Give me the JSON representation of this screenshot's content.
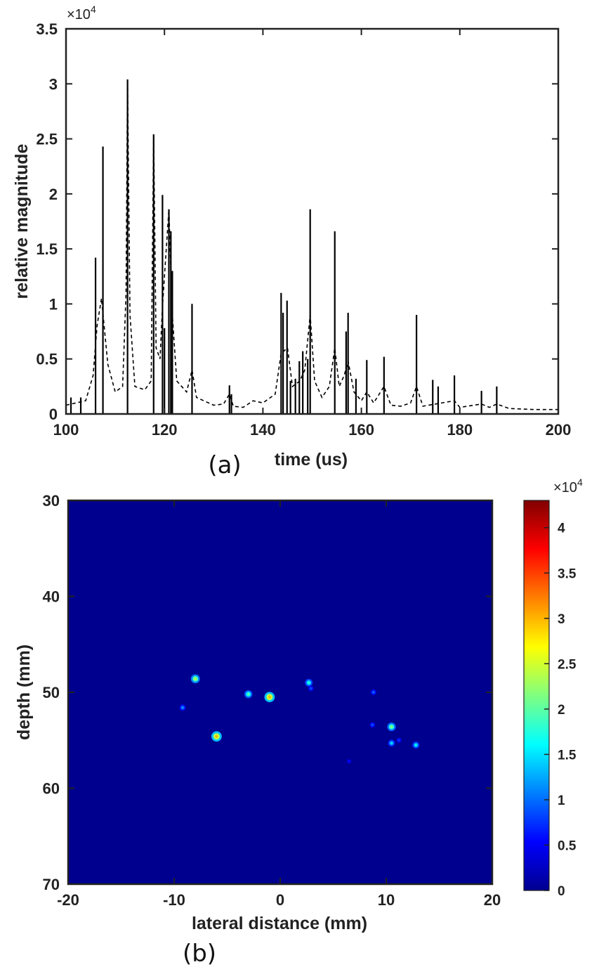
{
  "chart_data": [
    {
      "panel": "(a)",
      "type": "line",
      "xlabel": "time (us)",
      "ylabel": "relative magnitude",
      "y_exponent": "×10",
      "y_exponent_power": "4",
      "xlim": [
        100,
        200
      ],
      "ylim": [
        0,
        35000
      ],
      "x_ticks": [
        100,
        120,
        140,
        160,
        180,
        200
      ],
      "x_tick_labels": [
        "100",
        "120",
        "140",
        "160",
        "180",
        "200"
      ],
      "y_ticks": [
        0,
        5000,
        10000,
        15000,
        20000,
        25000,
        30000,
        35000
      ],
      "y_tick_labels": [
        "0",
        "0.5",
        "1",
        "1.5",
        "2",
        "2.5",
        "3",
        "3.5"
      ],
      "grid": false,
      "series": [
        {
          "style": "solid",
          "color": "#000000",
          "points": [
            [
              101.0,
              1500
            ],
            [
              103.0,
              1500
            ],
            [
              106.0,
              14200
            ],
            [
              107.5,
              24300
            ],
            [
              112.5,
              30400
            ],
            [
              117.8,
              25400
            ],
            [
              119.6,
              19900
            ],
            [
              120.0,
              7800
            ],
            [
              120.9,
              18600
            ],
            [
              121.3,
              16600
            ],
            [
              121.6,
              13000
            ],
            [
              125.6,
              10000
            ],
            [
              133.2,
              2600
            ],
            [
              133.6,
              1800
            ],
            [
              143.7,
              11000
            ],
            [
              144.1,
              9200
            ],
            [
              144.9,
              10300
            ],
            [
              145.6,
              3000
            ],
            [
              146.6,
              3200
            ],
            [
              147.4,
              4800
            ],
            [
              148.1,
              5700
            ],
            [
              149.1,
              5000
            ],
            [
              149.6,
              18600
            ],
            [
              154.6,
              16600
            ],
            [
              156.9,
              7500
            ],
            [
              157.3,
              9200
            ],
            [
              158.9,
              3200
            ],
            [
              161.1,
              4900
            ],
            [
              164.6,
              5200
            ],
            [
              171.2,
              9000
            ],
            [
              174.5,
              3100
            ],
            [
              175.6,
              2500
            ],
            [
              178.9,
              3500
            ],
            [
              184.4,
              2100
            ],
            [
              187.5,
              2500
            ]
          ]
        },
        {
          "style": "dashed",
          "color": "#000000",
          "points": [
            [
              100,
              800
            ],
            [
              104,
              1200
            ],
            [
              105.5,
              3500
            ],
            [
              106.3,
              8000
            ],
            [
              107.2,
              10500
            ],
            [
              108.5,
              4500
            ],
            [
              110,
              2000
            ],
            [
              111.5,
              2500
            ],
            [
              112.2,
              11000
            ],
            [
              112.5,
              30400
            ],
            [
              113,
              9000
            ],
            [
              114,
              2500
            ],
            [
              116,
              2200
            ],
            [
              117.3,
              3000
            ],
            [
              117.8,
              25400
            ],
            [
              118.3,
              6000
            ],
            [
              119.1,
              5000
            ],
            [
              119.6,
              9800
            ],
            [
              120.9,
              18600
            ],
            [
              121.6,
              9000
            ],
            [
              122.5,
              3000
            ],
            [
              124.5,
              2000
            ],
            [
              125.6,
              4000
            ],
            [
              126.5,
              1500
            ],
            [
              130,
              800
            ],
            [
              132,
              900
            ],
            [
              133.2,
              1800
            ],
            [
              134,
              700
            ],
            [
              136,
              600
            ],
            [
              138,
              1200
            ],
            [
              140,
              1000
            ],
            [
              142.5,
              1800
            ],
            [
              143.7,
              5500
            ],
            [
              145,
              6000
            ],
            [
              146,
              2500
            ],
            [
              147.5,
              3000
            ],
            [
              148.5,
              4000
            ],
            [
              149.6,
              9000
            ],
            [
              150.5,
              3000
            ],
            [
              152,
              1500
            ],
            [
              153.5,
              2500
            ],
            [
              154.6,
              6000
            ],
            [
              155.5,
              2500
            ],
            [
              156.5,
              3500
            ],
            [
              157.3,
              4800
            ],
            [
              158.5,
              2000
            ],
            [
              160,
              1200
            ],
            [
              161.1,
              2000
            ],
            [
              162.5,
              1000
            ],
            [
              164.6,
              2500
            ],
            [
              166,
              800
            ],
            [
              168,
              700
            ],
            [
              170,
              1000
            ],
            [
              171.2,
              2500
            ],
            [
              172.5,
              700
            ],
            [
              175,
              900
            ],
            [
              178.9,
              1200
            ],
            [
              180,
              600
            ],
            [
              184.4,
              900
            ],
            [
              186,
              600
            ],
            [
              187.5,
              900
            ],
            [
              190,
              500
            ],
            [
              195,
              400
            ],
            [
              200,
              400
            ]
          ]
        }
      ]
    },
    {
      "panel": "(b)",
      "type": "heatmap",
      "xlabel": "lateral distance (mm)",
      "ylabel": "depth (mm)",
      "xlim": [
        -20,
        20
      ],
      "ylim": [
        30,
        70
      ],
      "y_reversed": true,
      "x_ticks": [
        -20,
        -10,
        0,
        10,
        20
      ],
      "x_tick_labels": [
        "-20",
        "-10",
        "0",
        "10",
        "20"
      ],
      "y_ticks": [
        30,
        40,
        50,
        60,
        70
      ],
      "y_tick_labels": [
        "30",
        "40",
        "50",
        "60",
        "70"
      ],
      "colormap": "jet",
      "background_color": "#00008f",
      "colorbar": {
        "exponent": "×10",
        "exponent_power": "4",
        "range": [
          0,
          43000
        ],
        "ticks": [
          0,
          5000,
          10000,
          15000,
          20000,
          25000,
          30000,
          35000,
          40000
        ],
        "tick_labels": [
          "0",
          "0.5",
          "1",
          "1.5",
          "2",
          "2.5",
          "3",
          "3.5",
          "4"
        ]
      },
      "points": [
        {
          "x": -8.0,
          "y": 48.6,
          "value": 24000
        },
        {
          "x": -9.2,
          "y": 51.6,
          "value": 12000
        },
        {
          "x": -6.0,
          "y": 54.6,
          "value": 30000
        },
        {
          "x": -3.0,
          "y": 50.2,
          "value": 20000
        },
        {
          "x": -1.0,
          "y": 50.5,
          "value": 30000
        },
        {
          "x": 2.7,
          "y": 49.0,
          "value": 18000
        },
        {
          "x": 2.9,
          "y": 49.6,
          "value": 9000
        },
        {
          "x": 8.8,
          "y": 50.0,
          "value": 10000
        },
        {
          "x": 8.7,
          "y": 53.4,
          "value": 9000
        },
        {
          "x": 10.5,
          "y": 53.6,
          "value": 22000
        },
        {
          "x": 10.5,
          "y": 55.3,
          "value": 15000
        },
        {
          "x": 11.2,
          "y": 55.0,
          "value": 8000
        },
        {
          "x": 12.8,
          "y": 55.5,
          "value": 16000
        },
        {
          "x": 6.5,
          "y": 57.2,
          "value": 6000
        }
      ]
    }
  ]
}
